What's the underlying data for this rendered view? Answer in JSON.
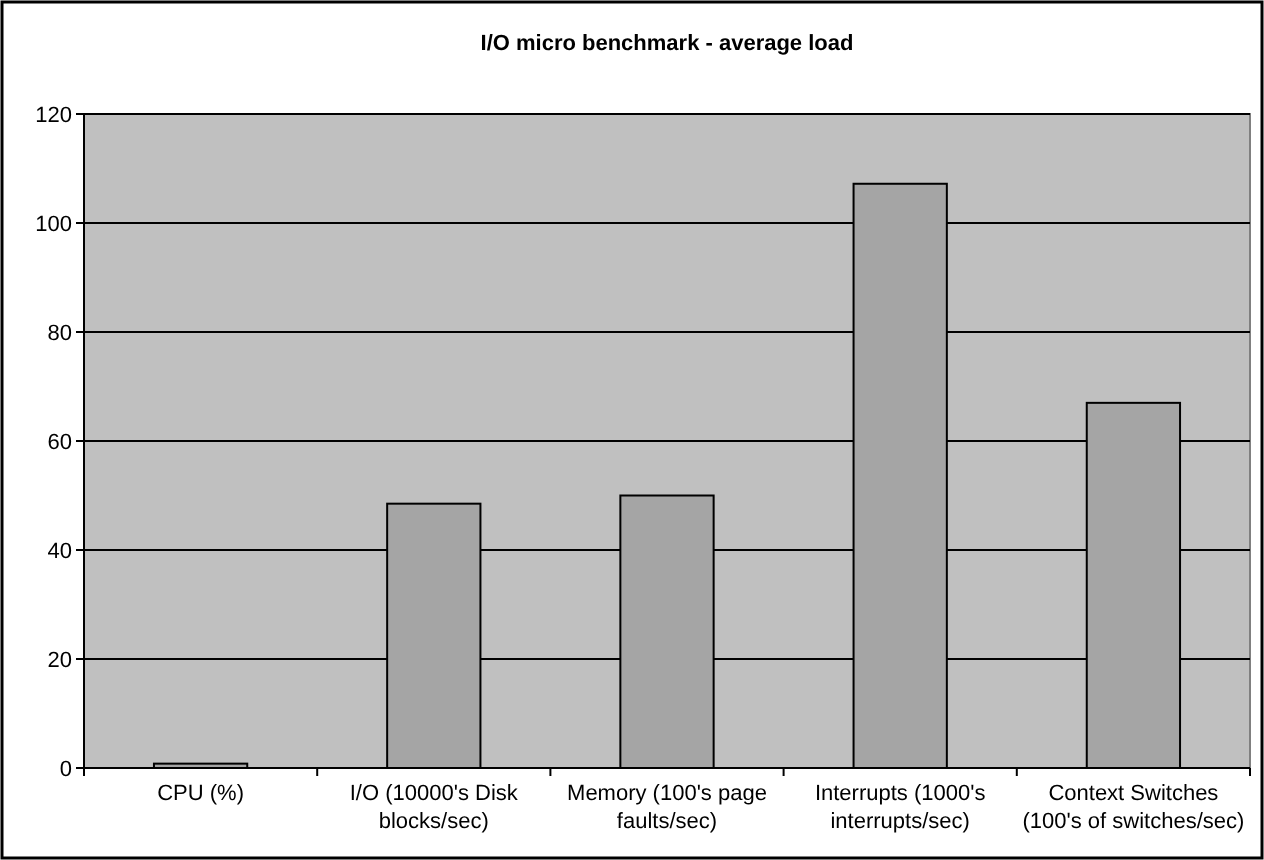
{
  "chart_data": {
    "type": "bar",
    "title": "I/O micro benchmark - average load",
    "categories": [
      "CPU (%)",
      "I/O (10000's Disk blocks/sec)",
      "Memory (100's page faults/sec)",
      "Interrupts (1000's interrupts/sec)",
      "Context Switches (100's of switches/sec)"
    ],
    "values": [
      0.8,
      48.5,
      50,
      107.2,
      67
    ],
    "color": "#a5a5a5",
    "ylim": [
      0,
      120
    ],
    "yticks": [
      0,
      20,
      40,
      60,
      80,
      100,
      120
    ],
    "grid": "y"
  }
}
